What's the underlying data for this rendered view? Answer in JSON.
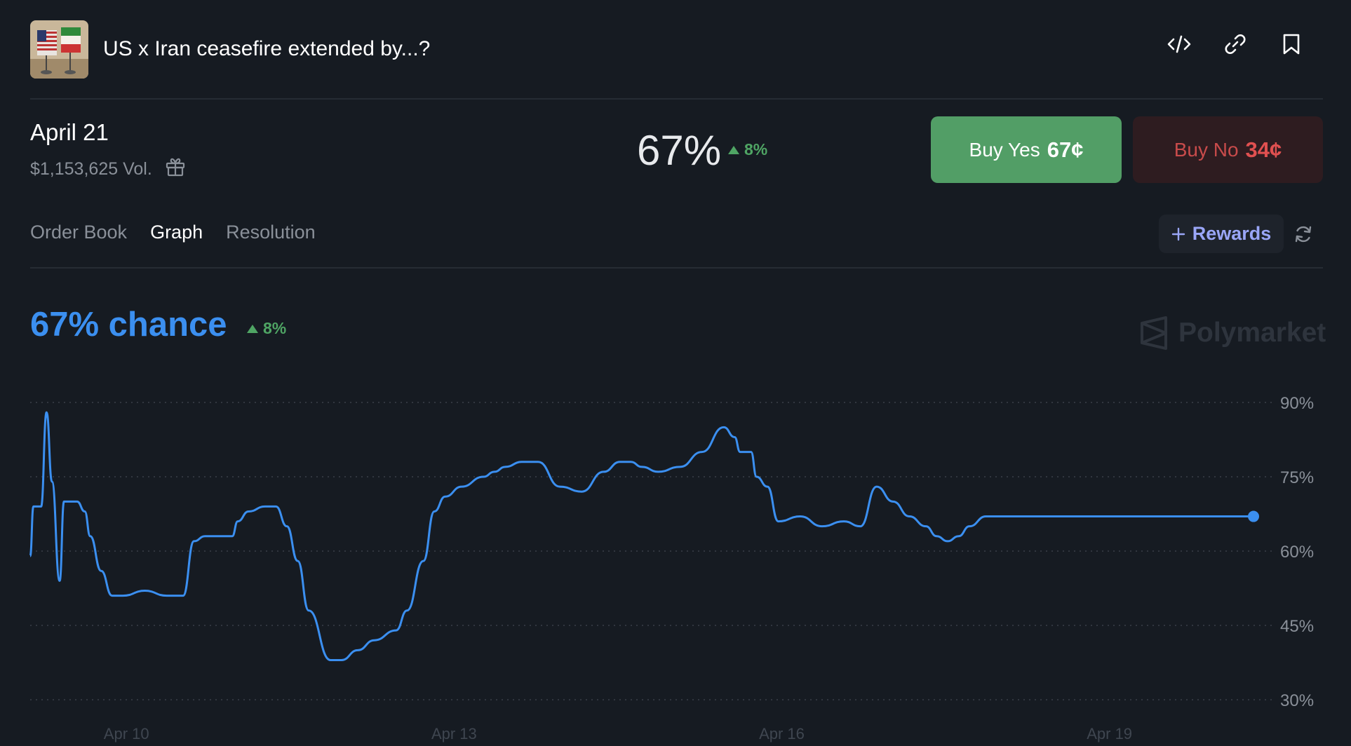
{
  "header": {
    "title": "US x Iran ceasefire extended by...?",
    "actions": [
      "embed-icon",
      "link-icon",
      "bookmark-icon"
    ]
  },
  "market": {
    "date": "April 21",
    "volume": "$1,153,625 Vol.",
    "probability": "67%",
    "change": "8%"
  },
  "buttons": {
    "yes_label": "Buy Yes",
    "yes_price": "67¢",
    "no_label": "Buy No",
    "no_price": "34¢"
  },
  "tabs": [
    {
      "label": "Order Book",
      "active": false
    },
    {
      "label": "Graph",
      "active": true
    },
    {
      "label": "Resolution",
      "active": false
    }
  ],
  "rewards": {
    "label": "Rewards"
  },
  "graph": {
    "chance": "67% chance",
    "change": "8%",
    "watermark": "Polymarket"
  },
  "colors": {
    "background": "#161b22",
    "line": "#3b8ff0",
    "positive": "#4fa564",
    "buy_yes": "#529e66",
    "buy_no_text": "#e05050",
    "rewards": "#9aa6f7"
  },
  "chart_data": {
    "type": "line",
    "y_ticks": [
      "90%",
      "75%",
      "60%",
      "45%",
      "30%"
    ],
    "x_ticks": [
      "Apr 10",
      "Apr 13",
      "Apr 16",
      "Apr 19"
    ],
    "ylim": [
      30,
      90
    ],
    "grid": true,
    "series": [
      {
        "x": [
          9.35,
          9.38,
          9.45,
          9.5,
          9.55,
          9.62,
          9.66,
          9.7,
          9.74,
          9.78,
          9.85,
          9.9,
          10.0,
          10.1,
          10.2,
          10.4,
          10.6,
          10.75,
          10.85,
          10.95,
          11.1,
          11.2,
          11.25,
          11.35,
          11.5,
          11.6,
          11.7,
          11.8,
          11.9,
          12.1,
          12.2,
          12.35,
          12.5,
          12.7,
          12.8,
          12.95,
          13.05,
          13.15,
          13.3,
          13.5,
          13.6,
          13.7,
          13.85,
          14.0,
          14.2,
          14.4,
          14.6,
          14.75,
          14.85,
          14.95,
          15.1,
          15.3,
          15.5,
          15.7,
          15.8,
          15.85,
          15.95,
          16.0,
          16.1,
          16.2,
          16.4,
          16.6,
          16.8,
          16.95,
          17.1,
          17.25,
          17.4,
          17.55,
          17.65,
          17.75,
          17.85,
          17.95,
          18.1,
          18.3,
          18.45,
          18.55,
          18.7,
          18.85,
          19.0,
          19.2,
          19.35,
          19.45,
          19.55,
          19.7,
          19.9,
          20.1,
          20.3,
          20.45,
          20.5,
          20.55
        ],
        "values": [
          59,
          69,
          69,
          88,
          74,
          54,
          70,
          70,
          70,
          70,
          68,
          63,
          56,
          51,
          51,
          52,
          51,
          51,
          62,
          63,
          63,
          63,
          66,
          68,
          69,
          69,
          65,
          58,
          48,
          38,
          38,
          40,
          42,
          44,
          48,
          58,
          68,
          71,
          73,
          75,
          76,
          77,
          78,
          78,
          73,
          72,
          76,
          78,
          78,
          77,
          76,
          77,
          80,
          85,
          83,
          80,
          80,
          75,
          73,
          66,
          67,
          65,
          66,
          65,
          73,
          70,
          67,
          65,
          63,
          62,
          63,
          65,
          67,
          67,
          67,
          67,
          67,
          67,
          67,
          67,
          67,
          67,
          67,
          67,
          67,
          67,
          67,
          67,
          67,
          67
        ]
      }
    ],
    "last_value": 67
  }
}
